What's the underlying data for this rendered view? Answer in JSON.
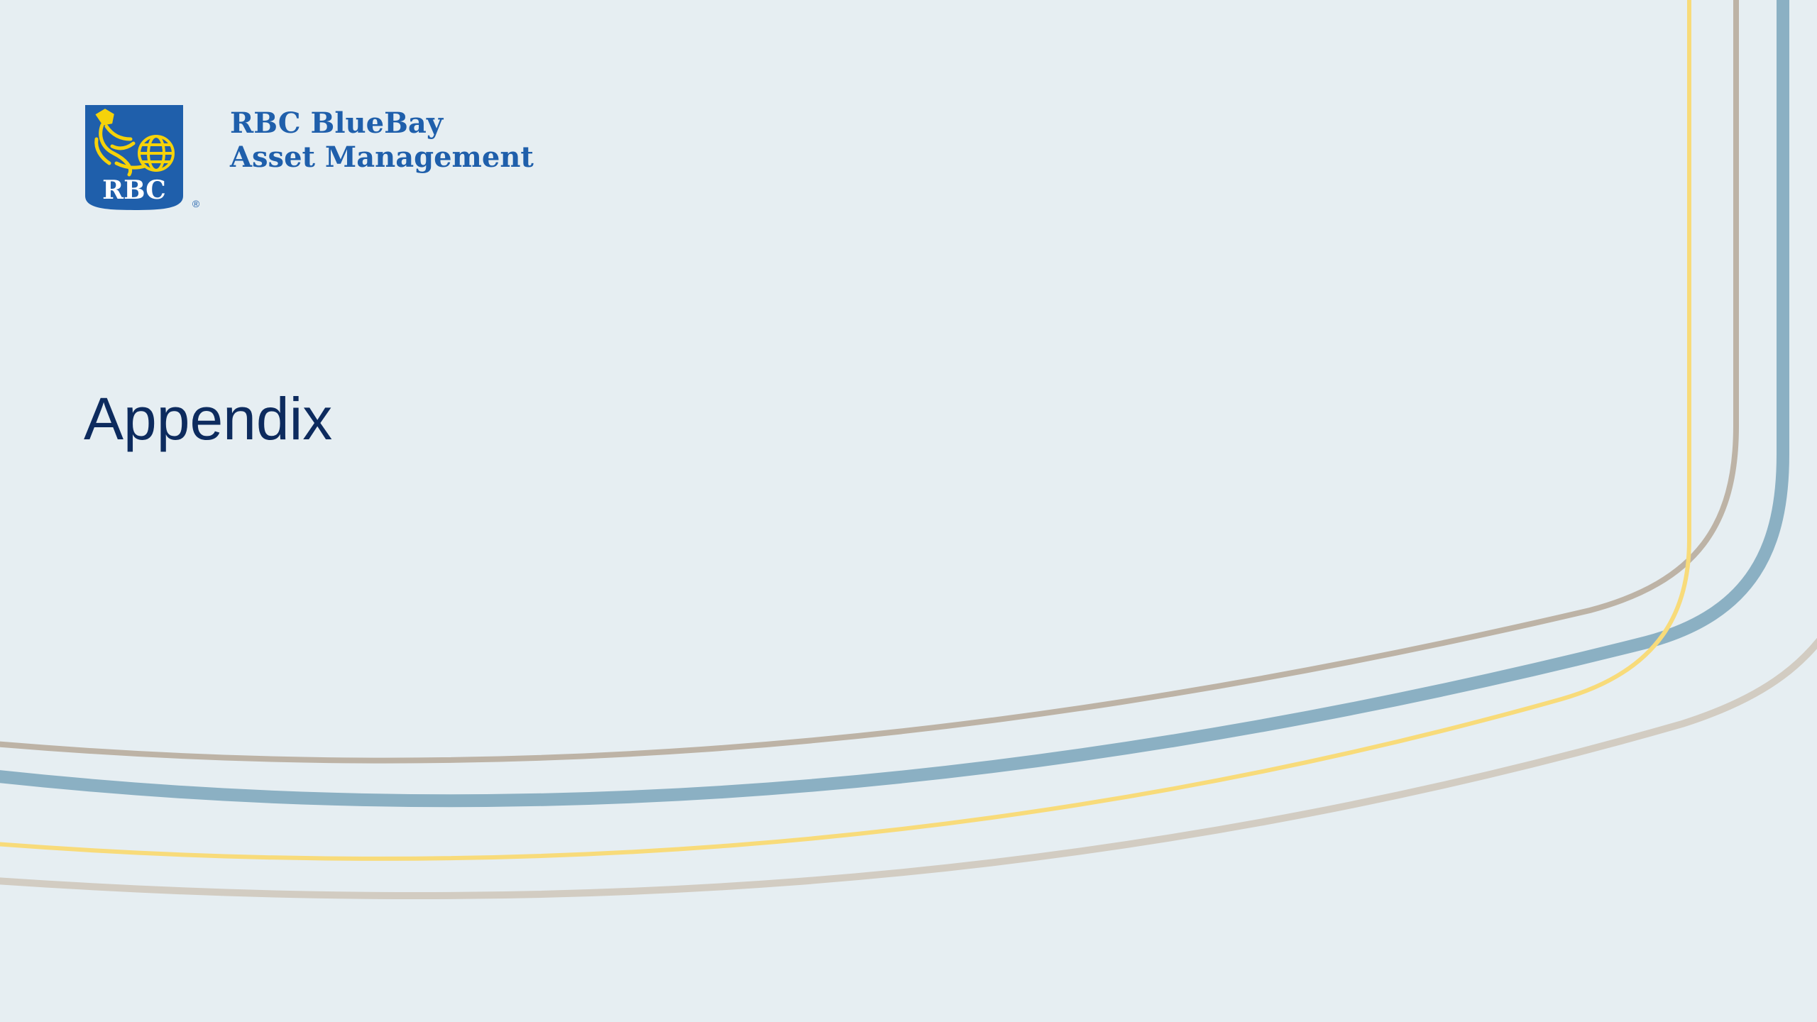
{
  "brand": {
    "name_line1": "RBC BlueBay",
    "name_line2": "Asset Management",
    "shield_text": "RBC",
    "registered_mark": "®"
  },
  "slide": {
    "title": "Appendix"
  },
  "colors": {
    "background": "#e6eef2",
    "title_text": "#0d2b5e",
    "brand_text": "#1f5fab",
    "shield_blue": "#1f5fab",
    "shield_gold": "#f5d20a",
    "curve_blue": "#8bb0c3",
    "curve_taupe": "#bdb3a6",
    "curve_yellow": "#f8db7a",
    "curve_light_taupe": "#d2ccc2"
  }
}
